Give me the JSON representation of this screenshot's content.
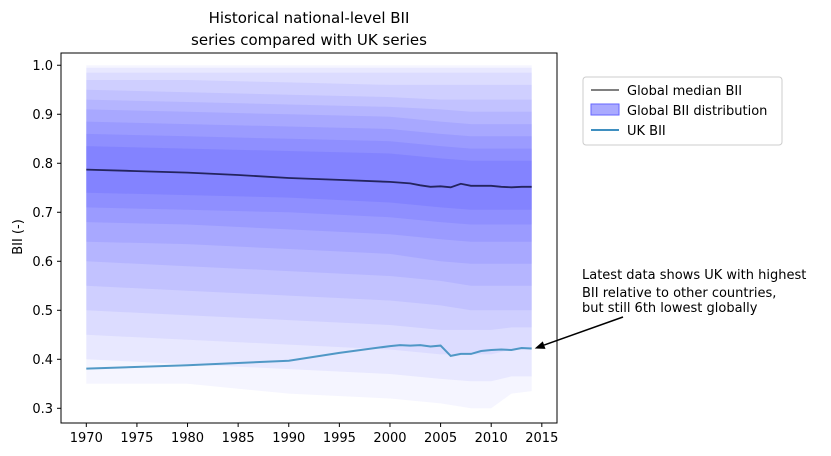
{
  "chart_data": {
    "type": "line",
    "title": [
      "Historical national-level BII",
      "series compared with UK series"
    ],
    "xlabel": "",
    "ylabel": "BII (-)",
    "xlim": [
      1967.5,
      2016.5
    ],
    "ylim": [
      0.27,
      1.025
    ],
    "x_ticks": [
      1970,
      1975,
      1980,
      1985,
      1990,
      1995,
      2000,
      2005,
      2010,
      2015
    ],
    "y_ticks": [
      0.3,
      0.4,
      0.5,
      0.6,
      0.7,
      0.8,
      0.9,
      1.0
    ],
    "y_tick_labels": [
      "0.3",
      "0.4",
      "0.5",
      "0.6",
      "0.7",
      "0.8",
      "0.9",
      "1.0"
    ],
    "grid": false,
    "legend_position": "right",
    "legend": [
      {
        "label": "Global median BII",
        "kind": "line",
        "color": "#808080"
      },
      {
        "label": "Global BII distribution",
        "kind": "patch",
        "color": "#aaaaff"
      },
      {
        "label": "UK BII",
        "kind": "line",
        "color": "#3f8fc0"
      }
    ],
    "annotation": {
      "text": [
        "Latest data shows UK with highest",
        "BII relative to other countries,",
        "but still 6th lowest globally"
      ],
      "xy": [
        2014,
        0.422
      ]
    },
    "distribution": {
      "color": "#4040ff",
      "years": [
        1970,
        1980,
        1990,
        2000,
        2005,
        2008,
        2010,
        2012,
        2014
      ],
      "bands": [
        {
          "opacity": 0.05,
          "lower": [
            0.35,
            0.35,
            0.33,
            0.32,
            0.31,
            0.3,
            0.3,
            0.33,
            0.335
          ],
          "upper": [
            1.0,
            1.0,
            1.0,
            1.0,
            1.0,
            1.0,
            1.0,
            1.0,
            1.0
          ]
        },
        {
          "opacity": 0.07,
          "lower": [
            0.4,
            0.39,
            0.38,
            0.37,
            0.36,
            0.355,
            0.355,
            0.365,
            0.365
          ],
          "upper": [
            0.995,
            0.995,
            0.995,
            0.995,
            0.995,
            0.995,
            0.995,
            0.995,
            0.995
          ]
        },
        {
          "opacity": 0.07,
          "lower": [
            0.45,
            0.44,
            0.43,
            0.42,
            0.41,
            0.41,
            0.41,
            0.42,
            0.42
          ],
          "upper": [
            0.985,
            0.985,
            0.985,
            0.985,
            0.985,
            0.985,
            0.985,
            0.985,
            0.985
          ]
        },
        {
          "opacity": 0.08,
          "lower": [
            0.5,
            0.49,
            0.48,
            0.47,
            0.46,
            0.46,
            0.46,
            0.465,
            0.465
          ],
          "upper": [
            0.97,
            0.97,
            0.965,
            0.96,
            0.96,
            0.96,
            0.96,
            0.96,
            0.96
          ]
        },
        {
          "opacity": 0.09,
          "lower": [
            0.55,
            0.54,
            0.53,
            0.52,
            0.51,
            0.5,
            0.5,
            0.5,
            0.5
          ],
          "upper": [
            0.95,
            0.945,
            0.94,
            0.935,
            0.93,
            0.93,
            0.93,
            0.93,
            0.93
          ]
        },
        {
          "opacity": 0.1,
          "lower": [
            0.6,
            0.59,
            0.58,
            0.57,
            0.56,
            0.55,
            0.55,
            0.55,
            0.55
          ],
          "upper": [
            0.93,
            0.925,
            0.92,
            0.915,
            0.91,
            0.905,
            0.905,
            0.905,
            0.905
          ]
        },
        {
          "opacity": 0.11,
          "lower": [
            0.64,
            0.635,
            0.625,
            0.615,
            0.6,
            0.595,
            0.595,
            0.595,
            0.595
          ],
          "upper": [
            0.91,
            0.905,
            0.9,
            0.895,
            0.885,
            0.88,
            0.88,
            0.88,
            0.88
          ]
        },
        {
          "opacity": 0.12,
          "lower": [
            0.68,
            0.675,
            0.665,
            0.655,
            0.645,
            0.64,
            0.64,
            0.64,
            0.64
          ],
          "upper": [
            0.885,
            0.88,
            0.875,
            0.87,
            0.86,
            0.855,
            0.855,
            0.855,
            0.855
          ]
        },
        {
          "opacity": 0.13,
          "lower": [
            0.71,
            0.705,
            0.7,
            0.69,
            0.68,
            0.675,
            0.675,
            0.675,
            0.675
          ],
          "upper": [
            0.86,
            0.855,
            0.85,
            0.845,
            0.835,
            0.83,
            0.83,
            0.83,
            0.83
          ]
        },
        {
          "opacity": 0.14,
          "lower": [
            0.74,
            0.735,
            0.73,
            0.72,
            0.71,
            0.705,
            0.705,
            0.705,
            0.705
          ],
          "upper": [
            0.835,
            0.83,
            0.825,
            0.82,
            0.81,
            0.805,
            0.805,
            0.805,
            0.805
          ]
        }
      ]
    },
    "series": [
      {
        "name": "Global median BII",
        "color": "#1a1a4d",
        "x": [
          1970,
          1975,
          1980,
          1985,
          1990,
          1995,
          2000,
          2002,
          2003,
          2004,
          2005,
          2006,
          2007,
          2008,
          2009,
          2010,
          2011,
          2012,
          2013,
          2014
        ],
        "y": [
          0.787,
          0.784,
          0.781,
          0.776,
          0.77,
          0.766,
          0.762,
          0.759,
          0.755,
          0.752,
          0.753,
          0.751,
          0.758,
          0.754,
          0.754,
          0.754,
          0.752,
          0.751,
          0.752,
          0.752
        ]
      },
      {
        "name": "UK BII",
        "color": "#3f8fc0",
        "x": [
          1970,
          1980,
          1990,
          1995,
          2000,
          2001,
          2002,
          2003,
          2004,
          2005,
          2006,
          2007,
          2008,
          2009,
          2010,
          2011,
          2012,
          2013,
          2014
        ],
        "y": [
          0.381,
          0.388,
          0.397,
          0.413,
          0.427,
          0.429,
          0.428,
          0.429,
          0.426,
          0.428,
          0.407,
          0.411,
          0.411,
          0.417,
          0.419,
          0.42,
          0.419,
          0.423,
          0.422
        ]
      }
    ]
  }
}
